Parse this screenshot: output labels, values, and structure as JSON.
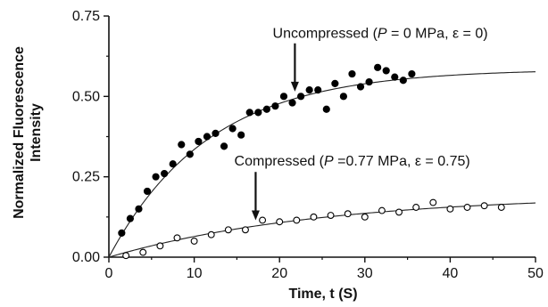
{
  "chart_data": {
    "type": "scatter",
    "xlabel": "Time, t (S)",
    "ylabel_line1": "Normalized Fluorescence",
    "ylabel_line2": "Intensity",
    "xlim": [
      0,
      50
    ],
    "ylim": [
      0,
      0.75
    ],
    "x_ticks": [
      0,
      10,
      20,
      30,
      40,
      50
    ],
    "y_ticks": [
      0.0,
      0.25,
      0.5,
      0.75
    ],
    "x_tick_labels": [
      "0",
      "10",
      "20",
      "30",
      "40",
      "50"
    ],
    "y_tick_labels": [
      "0.00",
      "0.25",
      "0.50",
      "0.75"
    ],
    "grid": false,
    "series": [
      {
        "name": "Uncompressed",
        "marker": "filled-circle",
        "color": "#000000",
        "fit": {
          "plateau": 0.585,
          "rate": 0.085
        },
        "points": [
          [
            1.5,
            0.075
          ],
          [
            2.5,
            0.12
          ],
          [
            3.5,
            0.15
          ],
          [
            4.5,
            0.205
          ],
          [
            5.5,
            0.25
          ],
          [
            6.5,
            0.26
          ],
          [
            7.5,
            0.29
          ],
          [
            8.5,
            0.35
          ],
          [
            9.5,
            0.32
          ],
          [
            10.5,
            0.36
          ],
          [
            11.5,
            0.375
          ],
          [
            12.5,
            0.385
          ],
          [
            13.5,
            0.345
          ],
          [
            14.5,
            0.4
          ],
          [
            15.5,
            0.38
          ],
          [
            16.5,
            0.45
          ],
          [
            17.5,
            0.45
          ],
          [
            18.5,
            0.46
          ],
          [
            19.5,
            0.47
          ],
          [
            20.5,
            0.5
          ],
          [
            21.5,
            0.48
          ],
          [
            22.5,
            0.5
          ],
          [
            23.5,
            0.52
          ],
          [
            24.5,
            0.52
          ],
          [
            25.5,
            0.46
          ],
          [
            26.5,
            0.54
          ],
          [
            27.5,
            0.5
          ],
          [
            28.5,
            0.57
          ],
          [
            29.5,
            0.53
          ],
          [
            30.5,
            0.545
          ],
          [
            31.5,
            0.59
          ],
          [
            32.5,
            0.58
          ],
          [
            33.5,
            0.56
          ],
          [
            34.5,
            0.55
          ],
          [
            35.5,
            0.57
          ]
        ]
      },
      {
        "name": "Compressed",
        "marker": "open-circle",
        "color": "#000000",
        "fit": {
          "plateau": 0.195,
          "rate": 0.04
        },
        "points": [
          [
            2,
            0.005
          ],
          [
            4,
            0.015
          ],
          [
            6,
            0.035
          ],
          [
            8,
            0.06
          ],
          [
            10,
            0.05
          ],
          [
            12,
            0.07
          ],
          [
            14,
            0.085
          ],
          [
            16,
            0.085
          ],
          [
            18,
            0.115
          ],
          [
            20,
            0.11
          ],
          [
            22,
            0.115
          ],
          [
            24,
            0.125
          ],
          [
            26,
            0.13
          ],
          [
            28,
            0.135
          ],
          [
            30,
            0.125
          ],
          [
            32,
            0.145
          ],
          [
            34,
            0.14
          ],
          [
            36,
            0.155
          ],
          [
            38,
            0.17
          ],
          [
            40,
            0.15
          ],
          [
            42,
            0.155
          ],
          [
            44,
            0.16
          ],
          [
            46,
            0.155
          ]
        ]
      }
    ],
    "annotations": [
      {
        "series": "Uncompressed",
        "label_prefix": "Uncompressed (",
        "label_p": "P",
        "label_suffix": " = 0 MPa, ε = 0)",
        "arrow_x": 21.8,
        "arrow_from_y": 0.665,
        "arrow_to_y": 0.515,
        "text_x": 19.2,
        "text_y": 0.682
      },
      {
        "series": "Compressed",
        "label_prefix": "Compressed (",
        "label_p": "P",
        "label_suffix": " =0.77 MPa, ε = 0.75)",
        "arrow_x": 17.2,
        "arrow_from_y": 0.265,
        "arrow_to_y": 0.115,
        "text_x": 14.7,
        "text_y": 0.285
      }
    ]
  }
}
